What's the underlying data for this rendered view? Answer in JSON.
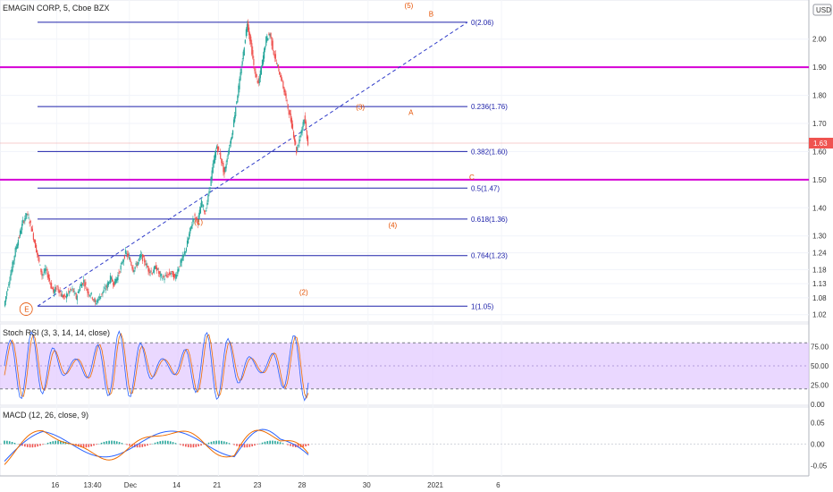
{
  "chart_data": {
    "type": "candlestick",
    "title": "EMAGIN CORP, 5, Cboe BZX",
    "currency_badge": "USD",
    "price": {
      "ylim": [
        1.0,
        2.12
      ],
      "y_ticks": [
        "2.00",
        "1.90",
        "1.80",
        "1.70",
        "1.60",
        "1.50",
        "1.40",
        "1.30",
        "1.24",
        "1.18",
        "1.13",
        "1.08",
        "1.02"
      ],
      "last_price": "1.63",
      "horizontal_lines": [
        1.9,
        1.5
      ],
      "fib_levels": [
        {
          "label": "0(2.06)",
          "value": 2.06
        },
        {
          "label": "0.236(1.76)",
          "value": 1.76
        },
        {
          "label": "0.382(1.60)",
          "value": 1.6
        },
        {
          "label": "0.5(1.47)",
          "value": 1.47
        },
        {
          "label": "0.618(1.36)",
          "value": 1.36
        },
        {
          "label": "0.764(1.23)",
          "value": 1.23
        },
        {
          "label": "1(1.05)",
          "value": 1.05
        }
      ],
      "wave_labels": [
        {
          "text": "(1)",
          "x": 0.25,
          "y": 1.34
        },
        {
          "text": "(2)",
          "x": 0.38,
          "y": 1.09
        },
        {
          "text": "(3)",
          "x": 0.45,
          "y": 1.75
        },
        {
          "text": "(4)",
          "x": 0.49,
          "y": 1.33
        },
        {
          "text": "(5)",
          "x": 0.51,
          "y": 2.11
        },
        {
          "text": "A",
          "x": 0.515,
          "y": 1.73
        },
        {
          "text": "B",
          "x": 0.54,
          "y": 2.08
        },
        {
          "text": "C",
          "x": 0.59,
          "y": 1.5
        },
        {
          "text": "E",
          "x": 0.04,
          "y": 1.03
        }
      ],
      "series": [
        1.05,
        1.12,
        1.18,
        1.25,
        1.3,
        1.35,
        1.38,
        1.34,
        1.28,
        1.22,
        1.16,
        1.18,
        1.14,
        1.1,
        1.12,
        1.09,
        1.08,
        1.1,
        1.11,
        1.08,
        1.12,
        1.14,
        1.1,
        1.09,
        1.06,
        1.08,
        1.1,
        1.12,
        1.15,
        1.13,
        1.16,
        1.2,
        1.24,
        1.22,
        1.18,
        1.2,
        1.23,
        1.21,
        1.18,
        1.17,
        1.19,
        1.16,
        1.15,
        1.16,
        1.17,
        1.15,
        1.19,
        1.22,
        1.26,
        1.32,
        1.37,
        1.35,
        1.42,
        1.38,
        1.46,
        1.55,
        1.62,
        1.58,
        1.52,
        1.6,
        1.66,
        1.76,
        1.85,
        1.95,
        2.06,
        1.98,
        1.88,
        1.84,
        1.92,
        2.0,
        2.02,
        1.95,
        1.9,
        1.86,
        1.8,
        1.74,
        1.68,
        1.6,
        1.66,
        1.72,
        1.63
      ]
    },
    "stoch_rsi": {
      "label": "Stoch RSI (3, 3, 14, 14, close)",
      "ylim": [
        0,
        100
      ],
      "band": [
        20,
        80
      ],
      "y_ticks": [
        "75.00",
        "50.00",
        "25.00",
        "0.00"
      ]
    },
    "macd": {
      "label": "MACD (12, 26, close, 9)",
      "ylim": [
        -0.07,
        0.08
      ],
      "y_ticks": [
        "0.05",
        "0.00",
        "-0.05"
      ]
    },
    "x_ticks": [
      "16",
      "13:40",
      "Dec",
      "14",
      "21",
      "23",
      "28",
      "30",
      "2021",
      "6"
    ]
  },
  "colors": {
    "fib": "#1e22aa",
    "magenta": "#d500d5",
    "band": "#e1c8ff",
    "wave": "#e65100",
    "trend": "#2f3bc9",
    "candle_up": "#26a69a",
    "candle_down": "#ef5350"
  }
}
